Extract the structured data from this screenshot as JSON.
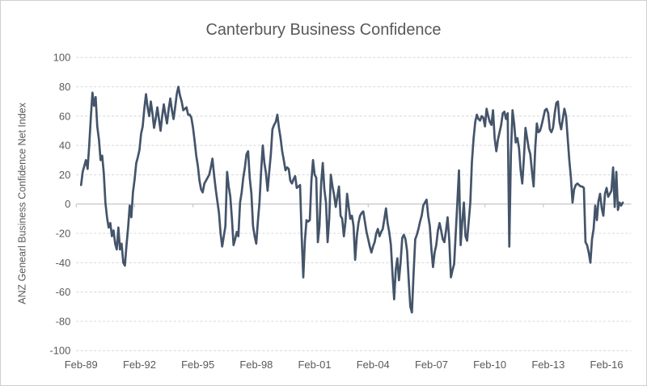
{
  "window": {
    "background": "#ffffff",
    "border_color": "#cfcfcf"
  },
  "chart_data": {
    "type": "line",
    "title": "Canterbury Business Confidence",
    "ylabel": "ANZ  Genearl Business Confidence Net Index",
    "xlabel": "",
    "ylim": [
      -100,
      100
    ],
    "y_tick_step": 20,
    "y_ticks": [
      100,
      80,
      60,
      40,
      20,
      0,
      -20,
      -40,
      -60,
      -80,
      -100
    ],
    "x_tick_labels": [
      "Feb-89",
      "Feb-92",
      "Feb-95",
      "Feb-98",
      "Feb-01",
      "Feb-04",
      "Feb-07",
      "Feb-10",
      "Feb-13",
      "Feb-16"
    ],
    "x_tick_interval_months": 36,
    "grid": "horizontal-dashed",
    "legend": "none",
    "colors": {
      "line": "#44546a",
      "grid": "#d9d9d9",
      "zero_axis": "#bfbfbf",
      "text": "#595959"
    },
    "series": [
      {
        "name": "Canterbury Business Confidence (net index)",
        "start": "1989-02",
        "frequency": "monthly",
        "values": [
          13,
          22,
          26,
          30,
          24,
          40,
          59,
          76,
          67,
          73,
          53,
          44,
          30,
          33,
          21,
          1,
          -9,
          -16,
          -13,
          -22,
          -18,
          -27,
          -31,
          -16,
          -31,
          -27,
          -40,
          -42,
          -28,
          -16,
          -1,
          -9,
          8,
          17,
          28,
          32,
          37,
          48,
          53,
          65,
          75,
          66,
          60,
          70,
          62,
          52,
          58,
          66,
          58,
          50,
          60,
          68,
          61,
          55,
          65,
          72,
          64,
          58,
          66,
          75,
          80,
          74,
          70,
          64,
          65,
          66,
          61,
          61,
          59,
          52,
          43,
          33,
          26,
          16,
          10,
          8,
          14,
          16,
          18,
          20,
          25,
          31,
          20,
          10,
          2,
          -6,
          -20,
          -29,
          -22,
          -15,
          22,
          12,
          5,
          -10,
          -28,
          -24,
          -19,
          -22,
          1,
          8,
          18,
          25,
          34,
          36,
          18,
          7,
          -15,
          -22,
          -27,
          -12,
          1,
          22,
          40,
          28,
          21,
          9,
          22,
          34,
          51,
          54,
          56,
          61,
          52,
          45,
          36,
          30,
          23,
          25,
          24,
          16,
          14,
          17,
          19,
          11,
          12,
          13,
          -22,
          -50,
          -25,
          -11,
          -12,
          -11,
          16,
          30,
          20,
          18,
          -26,
          -15,
          14,
          28,
          10,
          1,
          -26,
          -10,
          20,
          12,
          6,
          -2,
          5,
          12,
          -8,
          -10,
          -22,
          -12,
          7,
          -2,
          -10,
          -8,
          -15,
          -38,
          -22,
          -13,
          -8,
          -6,
          -5,
          -12,
          -19,
          -24,
          -29,
          -33,
          -29,
          -26,
          -20,
          -17,
          -22,
          -19,
          -17,
          -10,
          -3,
          -13,
          -19,
          -28,
          -48,
          -65,
          -45,
          -37,
          -52,
          -40,
          -23,
          -21,
          -24,
          -32,
          -52,
          -70,
          -74,
          -48,
          -24,
          -21,
          -17,
          -12,
          -8,
          -1,
          1,
          3,
          -8,
          -15,
          -31,
          -43,
          -33,
          -28,
          -18,
          -13,
          -18,
          -24,
          -26,
          -18,
          -9,
          -25,
          -50,
          -45,
          -41,
          -20,
          1,
          23,
          -28,
          -12,
          1,
          -22,
          -25,
          -12,
          1,
          29,
          45,
          56,
          61,
          58,
          57,
          60,
          59,
          53,
          65,
          60,
          56,
          54,
          64,
          45,
          36,
          44,
          49,
          54,
          62,
          63,
          58,
          62,
          -29,
          34,
          64,
          55,
          42,
          45,
          38,
          23,
          14,
          31,
          52,
          45,
          38,
          34,
          22,
          12,
          38,
          55,
          49,
          50,
          54,
          59,
          64,
          65,
          62,
          51,
          49,
          52,
          62,
          69,
          70,
          56,
          51,
          58,
          65,
          60,
          45,
          30,
          18,
          1,
          10,
          13,
          14,
          13,
          12,
          12,
          11,
          -26,
          -28,
          -33,
          -40,
          -24,
          -17,
          -1,
          -11,
          2,
          7,
          -3,
          -8,
          7,
          11,
          5,
          7,
          9,
          25,
          -2,
          22,
          -4,
          1,
          -1,
          1
        ]
      }
    ]
  }
}
